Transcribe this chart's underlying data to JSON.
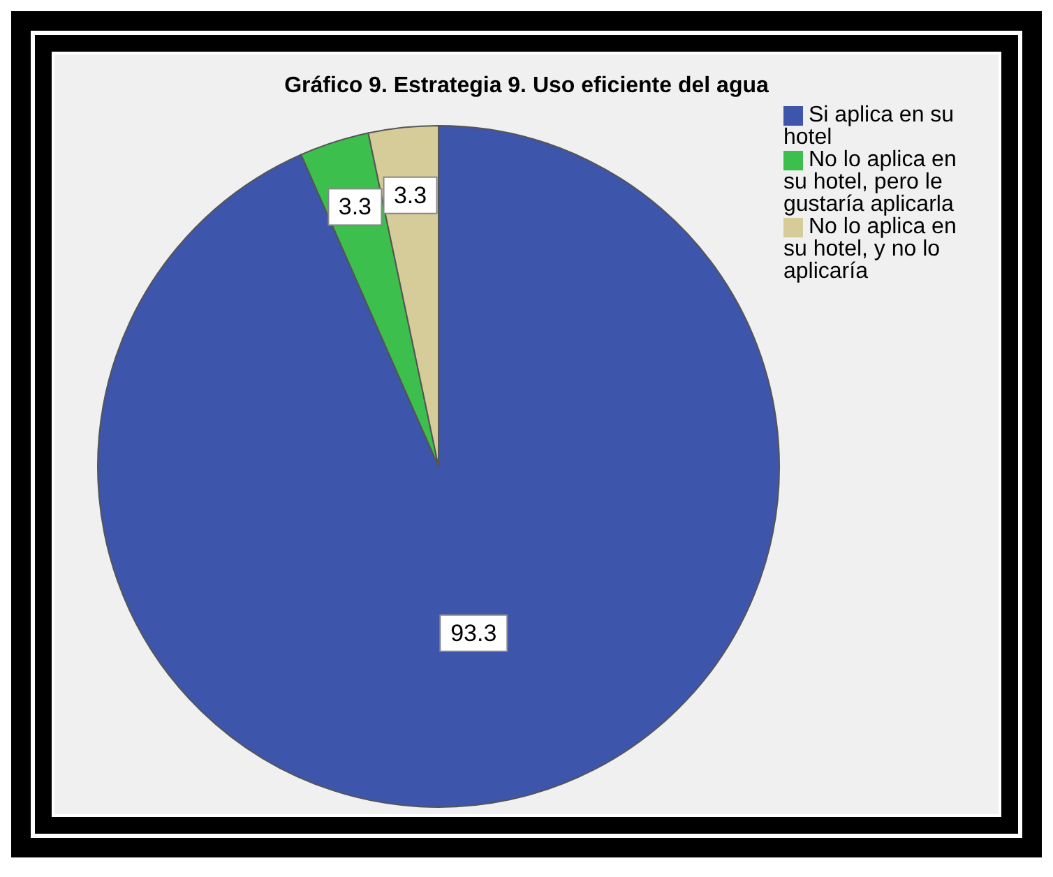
{
  "chart_data": {
    "type": "pie",
    "title": "Gráfico 9. Estrategia 9. Uso eficiente del agua",
    "categories": [
      "Si aplica en su hotel",
      "No lo aplica en su hotel, pero le gustaría aplicarla",
      "No lo aplica en su hotel, y no lo aplicaría"
    ],
    "values": [
      93.3,
      3.3,
      3.3
    ],
    "colors": [
      "#3d55ab",
      "#3cbf4c",
      "#d6cc99"
    ],
    "data_labels": true,
    "legend": "top right"
  }
}
